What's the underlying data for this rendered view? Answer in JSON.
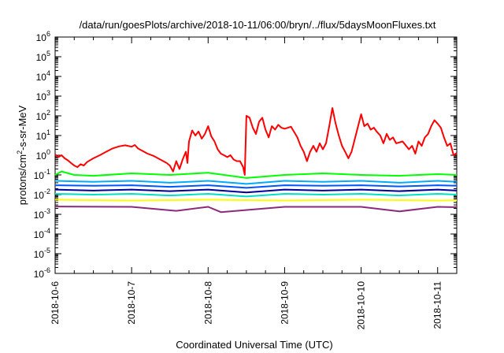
{
  "chart_data": {
    "type": "line",
    "title": "/data/run/goesPlots/archive/2018-10-11/06:00/bryn/../flux/5daysMoonFluxes.txt",
    "xlabel": "Coordinated Universal Time (UTC)",
    "ylabel_parts": [
      "protons/cm",
      "2",
      "-s-sr-MeV"
    ],
    "y_scale": "log",
    "ylim": [
      1e-06,
      1000000.0
    ],
    "y_ticks": [
      {
        "base": "10",
        "exp": "-6"
      },
      {
        "base": "10",
        "exp": "-5"
      },
      {
        "base": "10",
        "exp": "-4"
      },
      {
        "base": "10",
        "exp": "-3"
      },
      {
        "base": "10",
        "exp": "-2"
      },
      {
        "base": "10",
        "exp": "-1"
      },
      {
        "base": "10",
        "exp": "0"
      },
      {
        "base": "10",
        "exp": "1"
      },
      {
        "base": "10",
        "exp": "2"
      },
      {
        "base": "10",
        "exp": "3"
      },
      {
        "base": "10",
        "exp": "4"
      },
      {
        "base": "10",
        "exp": "5"
      },
      {
        "base": "10",
        "exp": "6"
      }
    ],
    "x_ticks": [
      "2018-10-6",
      "2018-10-7",
      "2018-10-8",
      "2018-10-9",
      "2018-10-10",
      "2018-10-11"
    ],
    "xlim_days": [
      "2018-10-06 00:00",
      "2018-10-11 06:00"
    ],
    "grid": false,
    "legend": "none",
    "series": [
      {
        "color": "#ff0000",
        "points": [
          [
            "2018-10-06 00:00",
            1.1
          ],
          [
            "2018-10-06 01:00",
            0.8
          ],
          [
            "2018-10-06 02:00",
            1.0
          ],
          [
            "2018-10-06 03:00",
            0.7
          ],
          [
            "2018-10-06 04:00",
            0.55
          ],
          [
            "2018-10-06 05:00",
            0.4
          ],
          [
            "2018-10-06 06:00",
            0.3
          ],
          [
            "2018-10-06 07:00",
            0.25
          ],
          [
            "2018-10-06 08:00",
            0.35
          ],
          [
            "2018-10-06 09:00",
            0.3
          ],
          [
            "2018-10-06 10:00",
            0.45
          ],
          [
            "2018-10-06 12:00",
            0.7
          ],
          [
            "2018-10-06 14:00",
            1.0
          ],
          [
            "2018-10-06 16:00",
            1.5
          ],
          [
            "2018-10-06 18:00",
            2.2
          ],
          [
            "2018-10-06 20:00",
            2.8
          ],
          [
            "2018-10-06 22:00",
            3.2
          ],
          [
            "2018-10-07 00:00",
            2.7
          ],
          [
            "2018-10-07 01:00",
            3.3
          ],
          [
            "2018-10-07 02:00",
            2.2
          ],
          [
            "2018-10-07 03:00",
            1.8
          ],
          [
            "2018-10-07 05:00",
            1.2
          ],
          [
            "2018-10-07 07:00",
            0.9
          ],
          [
            "2018-10-07 09:00",
            0.6
          ],
          [
            "2018-10-07 11:00",
            0.4
          ],
          [
            "2018-10-07 12:00",
            0.3
          ],
          [
            "2018-10-07 13:00",
            0.15
          ],
          [
            "2018-10-07 14:00",
            0.5
          ],
          [
            "2018-10-07 15:00",
            0.2
          ],
          [
            "2018-10-07 16:00",
            0.6
          ],
          [
            "2018-10-07 17:00",
            1.5
          ],
          [
            "2018-10-07 17:30",
            0.4
          ],
          [
            "2018-10-07 18:00",
            5
          ],
          [
            "2018-10-07 19:00",
            18
          ],
          [
            "2018-10-07 20:00",
            10
          ],
          [
            "2018-10-07 21:00",
            16
          ],
          [
            "2018-10-07 22:00",
            7
          ],
          [
            "2018-10-07 23:00",
            12
          ],
          [
            "2018-10-08 00:00",
            30
          ],
          [
            "2018-10-08 01:00",
            9
          ],
          [
            "2018-10-08 02:00",
            5
          ],
          [
            "2018-10-08 03:00",
            2
          ],
          [
            "2018-10-08 04:00",
            1.2
          ],
          [
            "2018-10-08 05:00",
            1.0
          ],
          [
            "2018-10-08 06:00",
            0.8
          ],
          [
            "2018-10-08 07:00",
            1.0
          ],
          [
            "2018-10-08 08:00",
            0.6
          ],
          [
            "2018-10-08 09:00",
            0.5
          ],
          [
            "2018-10-08 10:00",
            0.5
          ],
          [
            "2018-10-08 11:00",
            0.25
          ],
          [
            "2018-10-08 11:30",
            0.1
          ],
          [
            "2018-10-08 12:00",
            100
          ],
          [
            "2018-10-08 13:00",
            80
          ],
          [
            "2018-10-08 14:00",
            25
          ],
          [
            "2018-10-08 15:00",
            12
          ],
          [
            "2018-10-08 16:00",
            50
          ],
          [
            "2018-10-08 17:00",
            80
          ],
          [
            "2018-10-08 18:00",
            20
          ],
          [
            "2018-10-08 19:00",
            8
          ],
          [
            "2018-10-08 20:00",
            30
          ],
          [
            "2018-10-08 21:00",
            20
          ],
          [
            "2018-10-08 22:00",
            35
          ],
          [
            "2018-10-08 23:00",
            25
          ],
          [
            "2018-10-09 00:00",
            22
          ],
          [
            "2018-10-09 02:00",
            28
          ],
          [
            "2018-10-09 03:00",
            15
          ],
          [
            "2018-10-09 04:00",
            8
          ],
          [
            "2018-10-09 05:00",
            3
          ],
          [
            "2018-10-09 06:00",
            1.5
          ],
          [
            "2018-10-09 07:00",
            0.5
          ],
          [
            "2018-10-09 08:00",
            1.5
          ],
          [
            "2018-10-09 09:00",
            3
          ],
          [
            "2018-10-09 10:00",
            1.5
          ],
          [
            "2018-10-09 11:00",
            4
          ],
          [
            "2018-10-09 12:00",
            2
          ],
          [
            "2018-10-09 13:00",
            4
          ],
          [
            "2018-10-09 14:00",
            30
          ],
          [
            "2018-10-09 15:00",
            250
          ],
          [
            "2018-10-09 16:00",
            40
          ],
          [
            "2018-10-09 17:00",
            10
          ],
          [
            "2018-10-09 18:00",
            3
          ],
          [
            "2018-10-09 19:00",
            1.5
          ],
          [
            "2018-10-09 20:00",
            0.7
          ],
          [
            "2018-10-09 21:00",
            1.5
          ],
          [
            "2018-10-10 00:00",
            120
          ],
          [
            "2018-10-10 01:00",
            30
          ],
          [
            "2018-10-10 02:00",
            40
          ],
          [
            "2018-10-10 03:00",
            20
          ],
          [
            "2018-10-10 04:00",
            25
          ],
          [
            "2018-10-10 05:00",
            15
          ],
          [
            "2018-10-10 06:00",
            10
          ],
          [
            "2018-10-10 07:00",
            4
          ],
          [
            "2018-10-10 08:00",
            12
          ],
          [
            "2018-10-10 09:00",
            6
          ],
          [
            "2018-10-10 10:00",
            8
          ],
          [
            "2018-10-10 11:00",
            4
          ],
          [
            "2018-10-10 13:00",
            5
          ],
          [
            "2018-10-10 15:00",
            2
          ],
          [
            "2018-10-10 16:00",
            3
          ],
          [
            "2018-10-10 17:00",
            1.2
          ],
          [
            "2018-10-10 18:00",
            5
          ],
          [
            "2018-10-10 19:00",
            3
          ],
          [
            "2018-10-10 20:00",
            8
          ],
          [
            "2018-10-10 21:00",
            12
          ],
          [
            "2018-10-10 22:00",
            30
          ],
          [
            "2018-10-10 23:00",
            60
          ],
          [
            "2018-10-11 00:00",
            40
          ],
          [
            "2018-10-11 01:00",
            25
          ],
          [
            "2018-10-11 02:00",
            8
          ],
          [
            "2018-10-11 03:00",
            3
          ],
          [
            "2018-10-11 04:00",
            4
          ],
          [
            "2018-10-11 05:00",
            1.0
          ],
          [
            "2018-10-11 06:00",
            1.3
          ]
        ]
      },
      {
        "color": "#00ff00",
        "points": [
          [
            "2018-10-06 00:00",
            0.1
          ],
          [
            "2018-10-06 02:00",
            0.15
          ],
          [
            "2018-10-06 06:00",
            0.1
          ],
          [
            "2018-10-06 12:00",
            0.09
          ],
          [
            "2018-10-07 00:00",
            0.12
          ],
          [
            "2018-10-07 12:00",
            0.1
          ],
          [
            "2018-10-08 00:00",
            0.13
          ],
          [
            "2018-10-08 12:00",
            0.07
          ],
          [
            "2018-10-09 00:00",
            0.1
          ],
          [
            "2018-10-09 12:00",
            0.12
          ],
          [
            "2018-10-10 00:00",
            0.1
          ],
          [
            "2018-10-10 12:00",
            0.09
          ],
          [
            "2018-10-11 00:00",
            0.11
          ],
          [
            "2018-10-11 06:00",
            0.1
          ]
        ]
      },
      {
        "color": "#00aaff",
        "points": [
          [
            "2018-10-06 00:00",
            0.05
          ],
          [
            "2018-10-06 12:00",
            0.045
          ],
          [
            "2018-10-07 00:00",
            0.05
          ],
          [
            "2018-10-07 12:00",
            0.04
          ],
          [
            "2018-10-08 00:00",
            0.05
          ],
          [
            "2018-10-08 12:00",
            0.035
          ],
          [
            "2018-10-09 00:00",
            0.05
          ],
          [
            "2018-10-09 12:00",
            0.045
          ],
          [
            "2018-10-10 00:00",
            0.05
          ],
          [
            "2018-10-10 12:00",
            0.04
          ],
          [
            "2018-10-11 00:00",
            0.05
          ],
          [
            "2018-10-11 06:00",
            0.045
          ]
        ]
      },
      {
        "color": "#0055ff",
        "points": [
          [
            "2018-10-06 00:00",
            0.03
          ],
          [
            "2018-10-06 12:00",
            0.028
          ],
          [
            "2018-10-07 00:00",
            0.03
          ],
          [
            "2018-10-07 12:00",
            0.025
          ],
          [
            "2018-10-08 00:00",
            0.03
          ],
          [
            "2018-10-08 12:00",
            0.022
          ],
          [
            "2018-10-09 00:00",
            0.03
          ],
          [
            "2018-10-09 12:00",
            0.028
          ],
          [
            "2018-10-10 00:00",
            0.03
          ],
          [
            "2018-10-10 12:00",
            0.026
          ],
          [
            "2018-10-11 00:00",
            0.03
          ],
          [
            "2018-10-11 06:00",
            0.028
          ]
        ]
      },
      {
        "color": "#000099",
        "points": [
          [
            "2018-10-06 00:00",
            0.018
          ],
          [
            "2018-10-06 12:00",
            0.016
          ],
          [
            "2018-10-07 00:00",
            0.018
          ],
          [
            "2018-10-07 12:00",
            0.015
          ],
          [
            "2018-10-08 00:00",
            0.018
          ],
          [
            "2018-10-08 12:00",
            0.013
          ],
          [
            "2018-10-09 00:00",
            0.018
          ],
          [
            "2018-10-09 12:00",
            0.016
          ],
          [
            "2018-10-10 00:00",
            0.018
          ],
          [
            "2018-10-10 12:00",
            0.015
          ],
          [
            "2018-10-11 00:00",
            0.018
          ],
          [
            "2018-10-11 06:00",
            0.016
          ]
        ]
      },
      {
        "color": "#00e0c0",
        "points": [
          [
            "2018-10-06 00:00",
            0.011
          ],
          [
            "2018-10-06 12:00",
            0.01
          ],
          [
            "2018-10-07 00:00",
            0.011
          ],
          [
            "2018-10-07 12:00",
            0.009
          ],
          [
            "2018-10-08 00:00",
            0.011
          ],
          [
            "2018-10-08 12:00",
            0.008
          ],
          [
            "2018-10-09 00:00",
            0.011
          ],
          [
            "2018-10-09 12:00",
            0.01
          ],
          [
            "2018-10-10 00:00",
            0.011
          ],
          [
            "2018-10-10 12:00",
            0.009
          ],
          [
            "2018-10-11 00:00",
            0.011
          ],
          [
            "2018-10-11 06:00",
            0.01
          ]
        ]
      },
      {
        "color": "#ffff00",
        "points": [
          [
            "2018-10-06 00:00",
            0.0055
          ],
          [
            "2018-10-07 00:00",
            0.005
          ],
          [
            "2018-10-08 00:00",
            0.0055
          ],
          [
            "2018-10-09 00:00",
            0.005
          ],
          [
            "2018-10-10 00:00",
            0.0055
          ],
          [
            "2018-10-11 00:00",
            0.005
          ],
          [
            "2018-10-11 06:00",
            0.0052
          ]
        ]
      },
      {
        "color": "#8b2a7a",
        "points": [
          [
            "2018-10-06 00:00",
            0.0025
          ],
          [
            "2018-10-07 00:00",
            0.0024
          ],
          [
            "2018-10-07 14:00",
            0.0015
          ],
          [
            "2018-10-08 00:00",
            0.0024
          ],
          [
            "2018-10-08 04:00",
            0.0013
          ],
          [
            "2018-10-09 00:00",
            0.0024
          ],
          [
            "2018-10-10 00:00",
            0.0024
          ],
          [
            "2018-10-10 12:00",
            0.0014
          ],
          [
            "2018-10-11 00:00",
            0.0024
          ],
          [
            "2018-10-11 06:00",
            0.0023
          ]
        ]
      }
    ]
  }
}
